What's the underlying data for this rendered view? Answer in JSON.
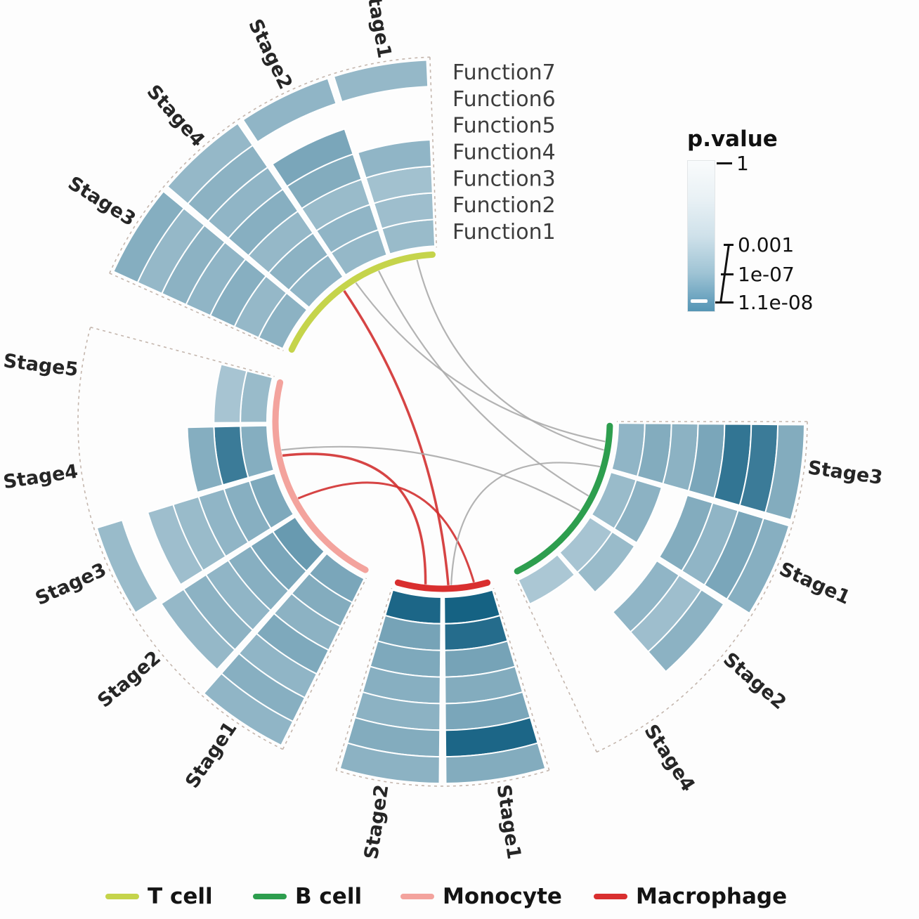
{
  "chart_data": {
    "type": "circos-heatmap",
    "description": "Circular heatmap of immune cell functions across tumor stages, colored by p.value, with chords linking sectors",
    "rings_inner_to_outer": [
      "Function1",
      "Function2",
      "Function3",
      "Function4",
      "Function5",
      "Function6",
      "Function7"
    ],
    "function_labels_top_to_bottom": [
      "Function7",
      "Function6",
      "Function5",
      "Function4",
      "Function3",
      "Function2",
      "Function1"
    ],
    "heat_scale": {
      "light": "#eaf2f6",
      "dark": "#0a5a7d"
    },
    "groups": [
      {
        "name": "T cell",
        "color": "#c5d44b",
        "start_angle": 204,
        "end_angle": 268,
        "stages": [
          {
            "label": "Stage3",
            "values_inner_to_outer": [
              0.42,
              0.38,
              0.44,
              0.4,
              0.42,
              0.38,
              0.45
            ]
          },
          {
            "label": "Stage4",
            "values_inner_to_outer": [
              0.4,
              0.42,
              0.38,
              0.44,
              0.4,
              0.42,
              0.38
            ]
          },
          {
            "label": "Stage2",
            "values_inner_to_outer": [
              0.38,
              0.4,
              0.36,
              0.46,
              0.5,
              0,
              0.4
            ]
          },
          {
            "label": "Stage1",
            "values_inner_to_outer": [
              0.36,
              0.34,
              0.32,
              0.4,
              0,
              0,
              0.38
            ]
          }
        ]
      },
      {
        "name": "B cell",
        "color": "#2d9e4e",
        "start_angle": 0,
        "end_angle": 65,
        "stages": [
          {
            "label": "Stage3",
            "values_inner_to_outer": [
              0.4,
              0.46,
              0.42,
              0.5,
              0.82,
              0.78,
              0.46
            ]
          },
          {
            "label": "Stage1",
            "values_inner_to_outer": [
              0.36,
              0.42,
              0,
              0.46,
              0.4,
              0.5,
              0.44
            ]
          },
          {
            "label": "Stage2",
            "values_inner_to_outer": [
              0.3,
              0.36,
              0,
              0.4,
              0.34,
              0.42,
              0
            ]
          },
          {
            "label": "Stage4",
            "values_inner_to_outer": [
              0.28,
              0,
              0,
              0,
              0,
              0,
              0
            ]
          }
        ]
      },
      {
        "name": "Macrophage",
        "color": "#d92f2f",
        "start_angle": 73,
        "end_angle": 107,
        "stages": [
          {
            "label": "Stage1",
            "values_inner_to_outer": [
              0.95,
              0.88,
              0.52,
              0.46,
              0.5,
              0.92,
              0.46
            ]
          },
          {
            "label": "Stage2",
            "values_inner_to_outer": [
              0.92,
              0.52,
              0.48,
              0.44,
              0.42,
              0.46,
              0.42
            ]
          }
        ]
      },
      {
        "name": "Monocyte",
        "color": "#f3a39d",
        "start_angle": 116,
        "end_angle": 195,
        "stages": [
          {
            "label": "Stage1",
            "values_inner_to_outer": [
              0.5,
              0.46,
              0.42,
              0.48,
              0.4,
              0.44,
              0.4
            ]
          },
          {
            "label": "Stage2",
            "values_inner_to_outer": [
              0.58,
              0.5,
              0.44,
              0.4,
              0.42,
              0.38,
              0
            ]
          },
          {
            "label": "Stage3",
            "values_inner_to_outer": [
              0.48,
              0.44,
              0.4,
              0.36,
              0.34,
              0,
              0.36
            ]
          },
          {
            "label": "Stage4",
            "values_inner_to_outer": [
              0.45,
              0.78,
              0.45,
              0,
              0,
              0,
              0
            ]
          },
          {
            "label": "Stage5",
            "values_inner_to_outer": [
              0.36,
              0.3,
              0,
              0,
              0,
              0,
              0
            ]
          }
        ]
      }
    ],
    "chords": [
      {
        "from_angle": 233,
        "to_angle": 88,
        "color": "#d13030",
        "width": 3.5
      },
      {
        "from_angle": 168,
        "to_angle": 96,
        "color": "#d13030",
        "width": 3.5
      },
      {
        "from_angle": 152,
        "to_angle": 79,
        "color": "#d13030",
        "width": 3.0
      },
      {
        "from_angle": 261,
        "to_angle": 10,
        "color": "#ababab",
        "width": 2.2
      },
      {
        "from_angle": 247,
        "to_angle": 27,
        "color": "#ababab",
        "width": 2.2
      },
      {
        "from_angle": 238,
        "to_angle": 7,
        "color": "#ababab",
        "width": 2.2
      },
      {
        "from_angle": 170,
        "to_angle": 33,
        "color": "#ababab",
        "width": 2.2
      },
      {
        "from_angle": 87,
        "to_angle": 16,
        "color": "#ababab",
        "width": 2.2
      }
    ],
    "pvalue_legend": {
      "title": "p.value",
      "top_tick": "1",
      "bottom_ticks": [
        "0.001",
        "1e-07",
        "1.1e-08"
      ]
    },
    "legend": [
      {
        "label": "T cell",
        "color": "#c5d44b"
      },
      {
        "label": "B cell",
        "color": "#2d9e4e"
      },
      {
        "label": "Monocyte",
        "color": "#f3a39d"
      },
      {
        "label": "Macrophage",
        "color": "#d92f2f"
      }
    ]
  }
}
